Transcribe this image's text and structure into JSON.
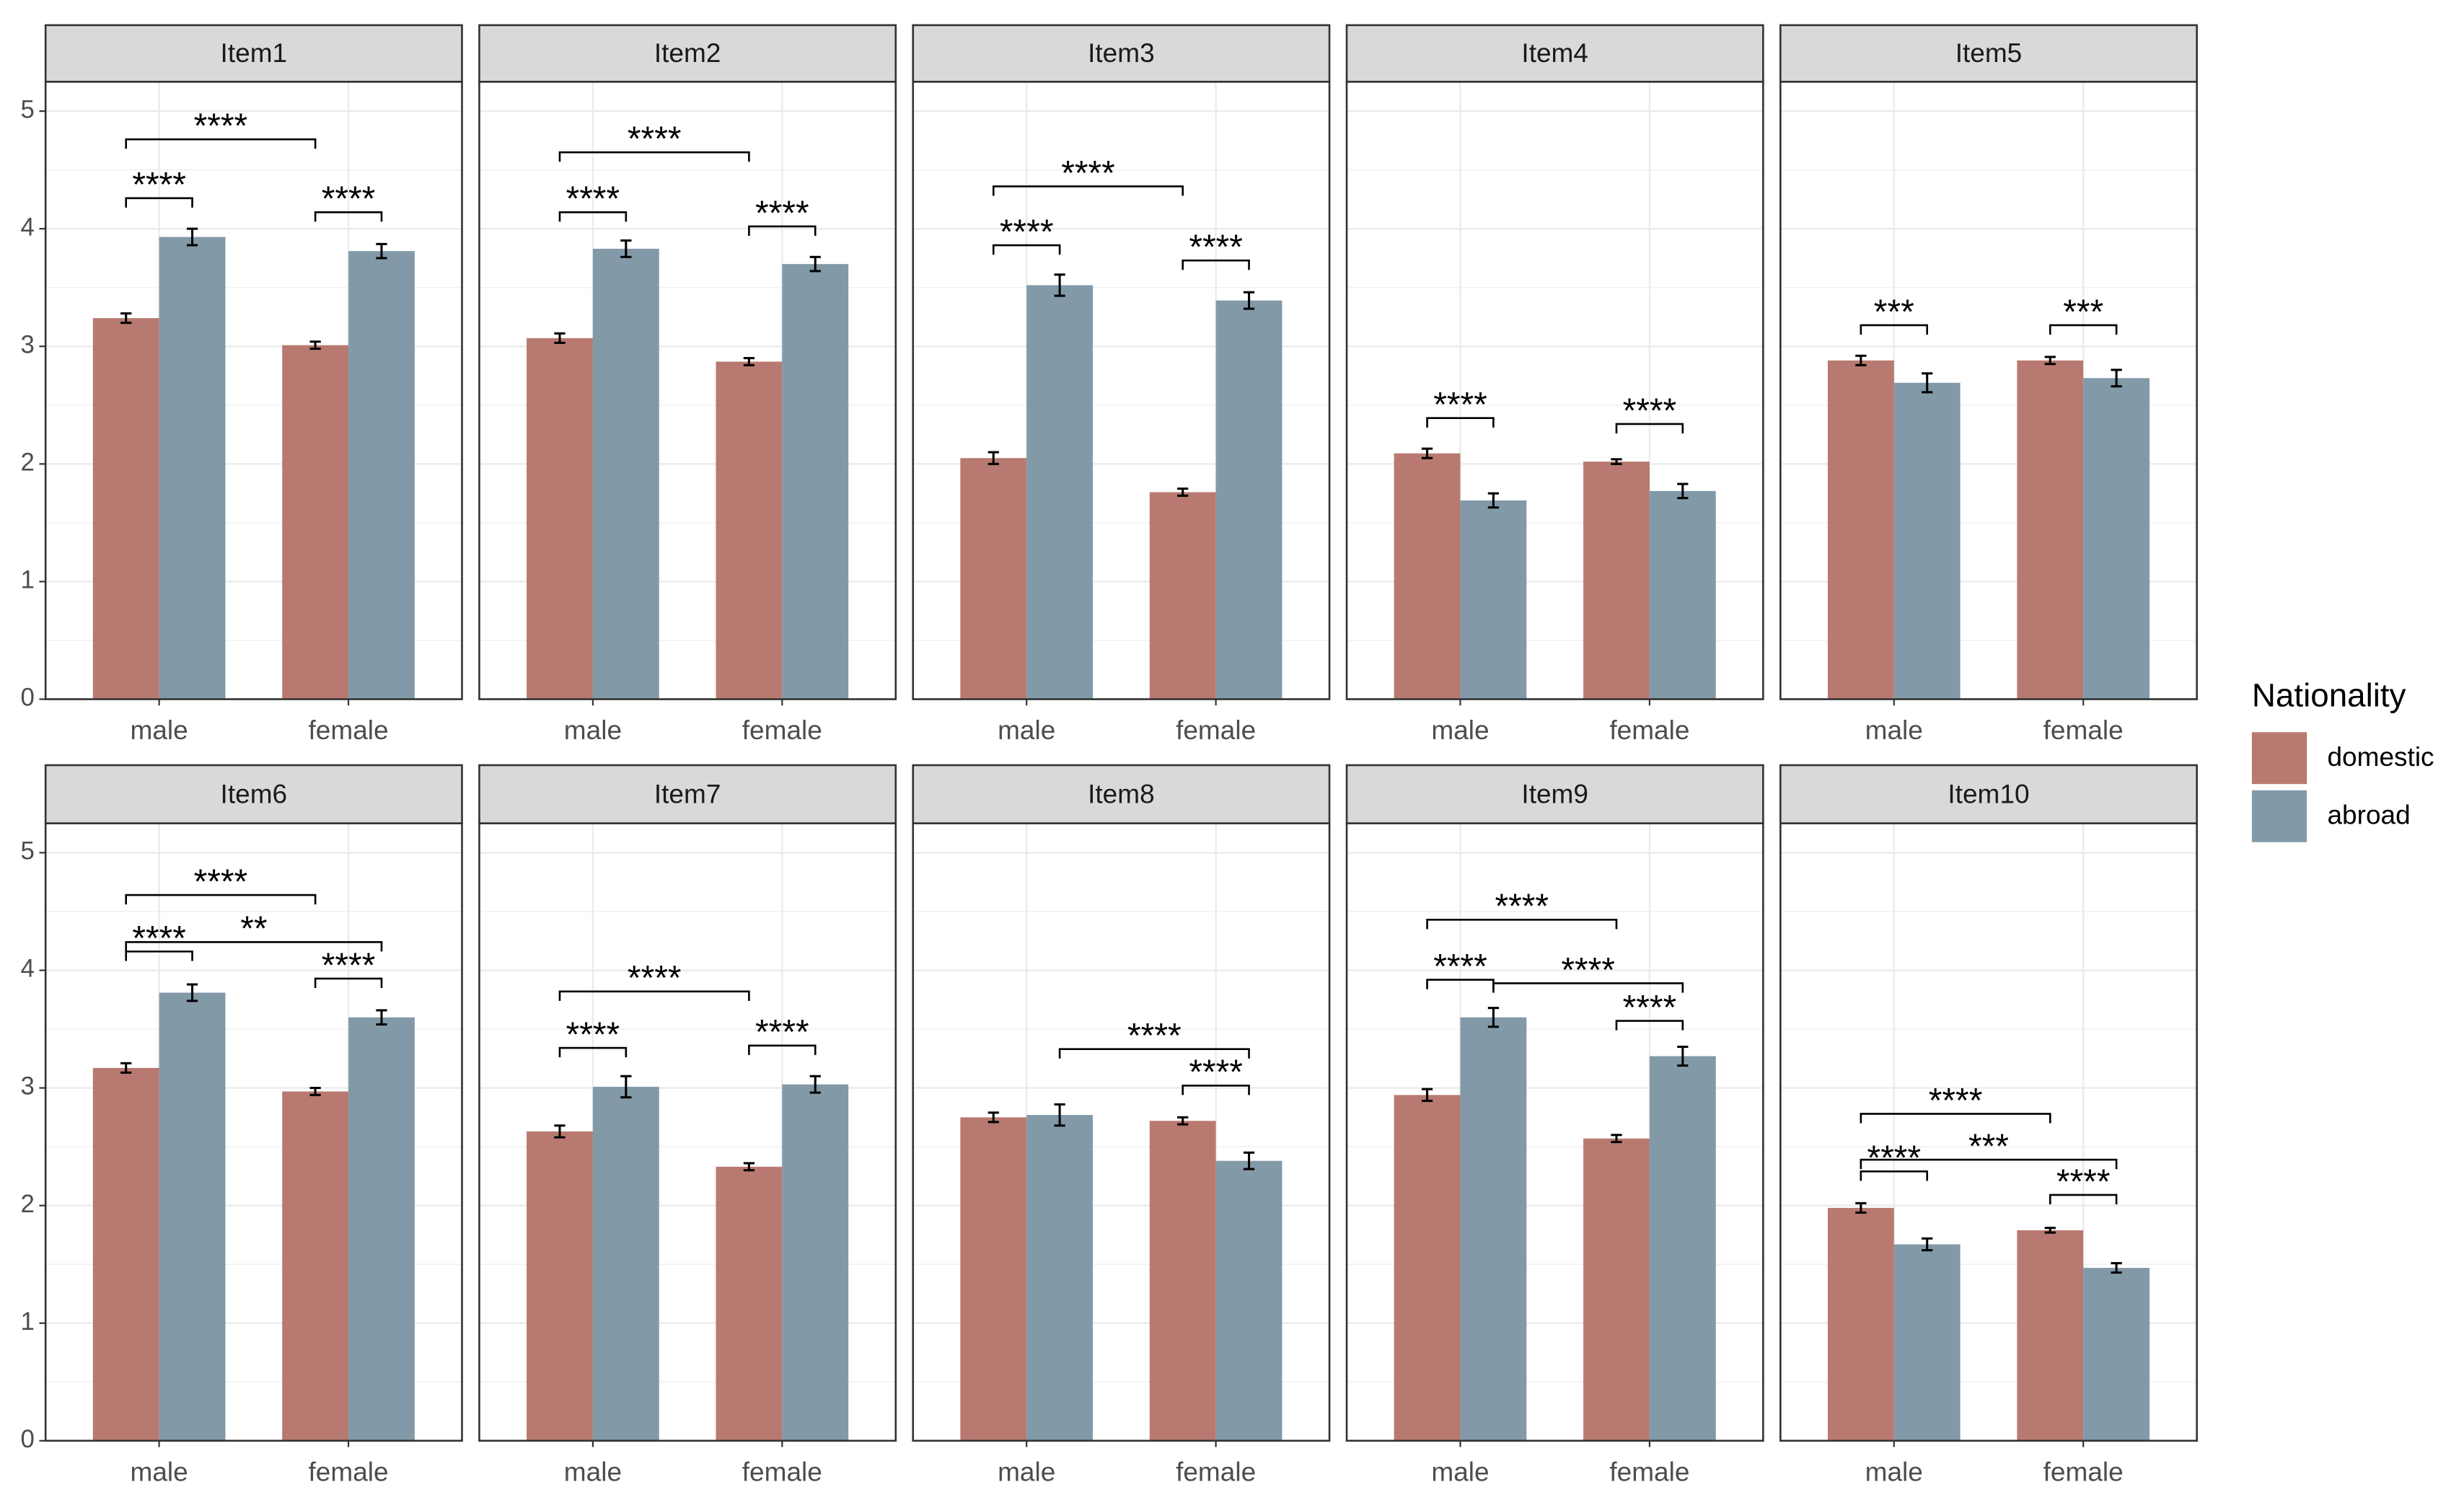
{
  "legend": {
    "title": "Nationality",
    "position": "right"
  },
  "chart_data": [
    {
      "type": "bar",
      "title": "Item1",
      "categories": [
        "male",
        "female"
      ],
      "ylim": [
        0,
        5.25
      ],
      "yticks": [
        0,
        1,
        2,
        3,
        4,
        5
      ],
      "grid": true,
      "series": [
        {
          "name": "domestic",
          "color": "#b87a70",
          "values": [
            3.24,
            3.01
          ],
          "errors": [
            0.04,
            0.03
          ]
        },
        {
          "name": "abroad",
          "color": "#8299a8",
          "values": [
            3.93,
            3.81
          ],
          "errors": [
            0.07,
            0.06
          ]
        }
      ],
      "annotations": [
        {
          "label": "****",
          "from": [
            "male",
            "domestic"
          ],
          "to": [
            "female",
            "domestic"
          ],
          "y": 4.76
        },
        {
          "label": "****",
          "from": [
            "male",
            "domestic"
          ],
          "to": [
            "male",
            "abroad"
          ],
          "y": 4.26
        },
        {
          "label": "****",
          "from": [
            "female",
            "domestic"
          ],
          "to": [
            "female",
            "abroad"
          ],
          "y": 4.14
        }
      ]
    },
    {
      "type": "bar",
      "title": "Item2",
      "categories": [
        "male",
        "female"
      ],
      "ylim": [
        0,
        5.25
      ],
      "yticks": [
        0,
        1,
        2,
        3,
        4,
        5
      ],
      "grid": true,
      "series": [
        {
          "name": "domestic",
          "color": "#b87a70",
          "values": [
            3.07,
            2.87
          ],
          "errors": [
            0.04,
            0.03
          ]
        },
        {
          "name": "abroad",
          "color": "#8299a8",
          "values": [
            3.83,
            3.7
          ],
          "errors": [
            0.07,
            0.06
          ]
        }
      ],
      "annotations": [
        {
          "label": "****",
          "from": [
            "male",
            "domestic"
          ],
          "to": [
            "female",
            "domestic"
          ],
          "y": 4.65
        },
        {
          "label": "****",
          "from": [
            "male",
            "domestic"
          ],
          "to": [
            "male",
            "abroad"
          ],
          "y": 4.14
        },
        {
          "label": "****",
          "from": [
            "female",
            "domestic"
          ],
          "to": [
            "female",
            "abroad"
          ],
          "y": 4.02
        }
      ]
    },
    {
      "type": "bar",
      "title": "Item3",
      "categories": [
        "male",
        "female"
      ],
      "ylim": [
        0,
        5.25
      ],
      "yticks": [
        0,
        1,
        2,
        3,
        4,
        5
      ],
      "grid": true,
      "series": [
        {
          "name": "domestic",
          "color": "#b87a70",
          "values": [
            2.05,
            1.76
          ],
          "errors": [
            0.05,
            0.03
          ]
        },
        {
          "name": "abroad",
          "color": "#8299a8",
          "values": [
            3.52,
            3.39
          ],
          "errors": [
            0.09,
            0.07
          ]
        }
      ],
      "annotations": [
        {
          "label": "****",
          "from": [
            "male",
            "domestic"
          ],
          "to": [
            "female",
            "domestic"
          ],
          "y": 4.36
        },
        {
          "label": "****",
          "from": [
            "male",
            "domestic"
          ],
          "to": [
            "male",
            "abroad"
          ],
          "y": 3.86
        },
        {
          "label": "****",
          "from": [
            "female",
            "domestic"
          ],
          "to": [
            "female",
            "abroad"
          ],
          "y": 3.73
        }
      ]
    },
    {
      "type": "bar",
      "title": "Item4",
      "categories": [
        "male",
        "female"
      ],
      "ylim": [
        0,
        5.25
      ],
      "yticks": [
        0,
        1,
        2,
        3,
        4,
        5
      ],
      "grid": true,
      "series": [
        {
          "name": "domestic",
          "color": "#b87a70",
          "values": [
            2.09,
            2.02
          ],
          "errors": [
            0.04,
            0.02
          ]
        },
        {
          "name": "abroad",
          "color": "#8299a8",
          "values": [
            1.69,
            1.77
          ],
          "errors": [
            0.06,
            0.06
          ]
        }
      ],
      "annotations": [
        {
          "label": "****",
          "from": [
            "male",
            "domestic"
          ],
          "to": [
            "male",
            "abroad"
          ],
          "y": 2.39
        },
        {
          "label": "****",
          "from": [
            "female",
            "domestic"
          ],
          "to": [
            "female",
            "abroad"
          ],
          "y": 2.34
        }
      ]
    },
    {
      "type": "bar",
      "title": "Item5",
      "categories": [
        "male",
        "female"
      ],
      "ylim": [
        0,
        5.25
      ],
      "yticks": [
        0,
        1,
        2,
        3,
        4,
        5
      ],
      "grid": true,
      "series": [
        {
          "name": "domestic",
          "color": "#b87a70",
          "values": [
            2.88,
            2.88
          ],
          "errors": [
            0.04,
            0.03
          ]
        },
        {
          "name": "abroad",
          "color": "#8299a8",
          "values": [
            2.69,
            2.73
          ],
          "errors": [
            0.08,
            0.07
          ]
        }
      ],
      "annotations": [
        {
          "label": "***",
          "from": [
            "male",
            "domestic"
          ],
          "to": [
            "male",
            "abroad"
          ],
          "y": 3.18
        },
        {
          "label": "***",
          "from": [
            "female",
            "domestic"
          ],
          "to": [
            "female",
            "abroad"
          ],
          "y": 3.18
        }
      ]
    },
    {
      "type": "bar",
      "title": "Item6",
      "categories": [
        "male",
        "female"
      ],
      "ylim": [
        0,
        5.25
      ],
      "yticks": [
        0,
        1,
        2,
        3,
        4,
        5
      ],
      "grid": true,
      "series": [
        {
          "name": "domestic",
          "color": "#b87a70",
          "values": [
            3.17,
            2.97
          ],
          "errors": [
            0.04,
            0.03
          ]
        },
        {
          "name": "abroad",
          "color": "#8299a8",
          "values": [
            3.81,
            3.6
          ],
          "errors": [
            0.07,
            0.06
          ]
        }
      ],
      "annotations": [
        {
          "label": "****",
          "from": [
            "male",
            "domestic"
          ],
          "to": [
            "female",
            "domestic"
          ],
          "y": 4.64
        },
        {
          "label": "**",
          "from": [
            "male",
            "domestic"
          ],
          "to": [
            "female",
            "abroad"
          ],
          "y": 4.24
        },
        {
          "label": "****",
          "from": [
            "male",
            "domestic"
          ],
          "to": [
            "male",
            "abroad"
          ],
          "y": 4.16
        },
        {
          "label": "****",
          "from": [
            "female",
            "domestic"
          ],
          "to": [
            "female",
            "abroad"
          ],
          "y": 3.93
        }
      ]
    },
    {
      "type": "bar",
      "title": "Item7",
      "categories": [
        "male",
        "female"
      ],
      "ylim": [
        0,
        5.25
      ],
      "yticks": [
        0,
        1,
        2,
        3,
        4,
        5
      ],
      "grid": true,
      "series": [
        {
          "name": "domestic",
          "color": "#b87a70",
          "values": [
            2.63,
            2.33
          ],
          "errors": [
            0.05,
            0.03
          ]
        },
        {
          "name": "abroad",
          "color": "#8299a8",
          "values": [
            3.01,
            3.03
          ],
          "errors": [
            0.09,
            0.07
          ]
        }
      ],
      "annotations": [
        {
          "label": "****",
          "from": [
            "male",
            "domestic"
          ],
          "to": [
            "female",
            "domestic"
          ],
          "y": 3.82
        },
        {
          "label": "****",
          "from": [
            "male",
            "domestic"
          ],
          "to": [
            "male",
            "abroad"
          ],
          "y": 3.34
        },
        {
          "label": "****",
          "from": [
            "female",
            "domestic"
          ],
          "to": [
            "female",
            "abroad"
          ],
          "y": 3.36
        }
      ]
    },
    {
      "type": "bar",
      "title": "Item8",
      "categories": [
        "male",
        "female"
      ],
      "ylim": [
        0,
        5.25
      ],
      "yticks": [
        0,
        1,
        2,
        3,
        4,
        5
      ],
      "grid": true,
      "series": [
        {
          "name": "domestic",
          "color": "#b87a70",
          "values": [
            2.75,
            2.72
          ],
          "errors": [
            0.04,
            0.03
          ]
        },
        {
          "name": "abroad",
          "color": "#8299a8",
          "values": [
            2.77,
            2.38
          ],
          "errors": [
            0.09,
            0.07
          ]
        }
      ],
      "annotations": [
        {
          "label": "****",
          "from": [
            "male",
            "abroad"
          ],
          "to": [
            "female",
            "abroad"
          ],
          "y": 3.33
        },
        {
          "label": "****",
          "from": [
            "female",
            "domestic"
          ],
          "to": [
            "female",
            "abroad"
          ],
          "y": 3.02
        }
      ]
    },
    {
      "type": "bar",
      "title": "Item9",
      "categories": [
        "male",
        "female"
      ],
      "ylim": [
        0,
        5.25
      ],
      "yticks": [
        0,
        1,
        2,
        3,
        4,
        5
      ],
      "grid": true,
      "series": [
        {
          "name": "domestic",
          "color": "#b87a70",
          "values": [
            2.94,
            2.57
          ],
          "errors": [
            0.05,
            0.03
          ]
        },
        {
          "name": "abroad",
          "color": "#8299a8",
          "values": [
            3.6,
            3.27
          ],
          "errors": [
            0.08,
            0.08
          ]
        }
      ],
      "annotations": [
        {
          "label": "****",
          "from": [
            "male",
            "domestic"
          ],
          "to": [
            "female",
            "domestic"
          ],
          "y": 4.43
        },
        {
          "label": "****",
          "from": [
            "male",
            "domestic"
          ],
          "to": [
            "male",
            "abroad"
          ],
          "y": 3.92
        },
        {
          "label": "****",
          "from": [
            "male",
            "abroad"
          ],
          "to": [
            "female",
            "abroad"
          ],
          "y": 3.89
        },
        {
          "label": "****",
          "from": [
            "female",
            "domestic"
          ],
          "to": [
            "female",
            "abroad"
          ],
          "y": 3.57
        }
      ]
    },
    {
      "type": "bar",
      "title": "Item10",
      "categories": [
        "male",
        "female"
      ],
      "ylim": [
        0,
        5.25
      ],
      "yticks": [
        0,
        1,
        2,
        3,
        4,
        5
      ],
      "grid": true,
      "series": [
        {
          "name": "domestic",
          "color": "#b87a70",
          "values": [
            1.98,
            1.79
          ],
          "errors": [
            0.04,
            0.02
          ]
        },
        {
          "name": "abroad",
          "color": "#8299a8",
          "values": [
            1.67,
            1.47
          ],
          "errors": [
            0.05,
            0.04
          ]
        }
      ],
      "annotations": [
        {
          "label": "****",
          "from": [
            "male",
            "domestic"
          ],
          "to": [
            "female",
            "domestic"
          ],
          "y": 2.78
        },
        {
          "label": "***",
          "from": [
            "male",
            "domestic"
          ],
          "to": [
            "female",
            "abroad"
          ],
          "y": 2.39
        },
        {
          "label": "****",
          "from": [
            "male",
            "domestic"
          ],
          "to": [
            "male",
            "abroad"
          ],
          "y": 2.29
        },
        {
          "label": "****",
          "from": [
            "female",
            "domestic"
          ],
          "to": [
            "female",
            "abroad"
          ],
          "y": 2.09
        }
      ]
    }
  ]
}
